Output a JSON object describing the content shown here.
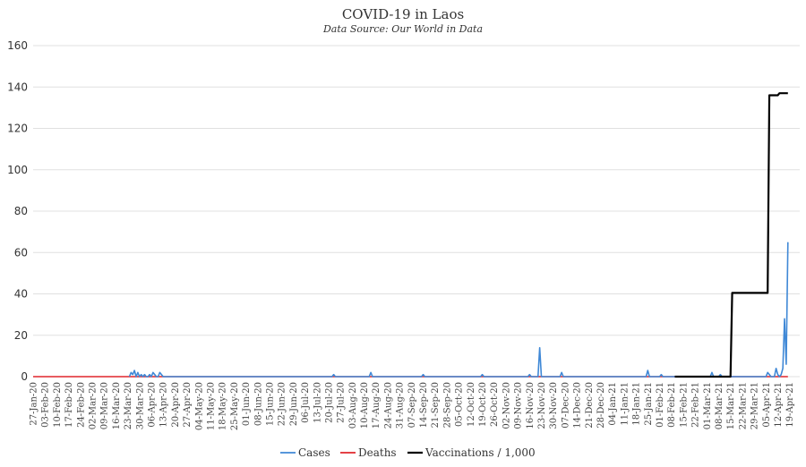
{
  "chart_data": {
    "type": "line",
    "title": "COVID-19 in Laos",
    "subtitle": "Data Source: Our World in Data",
    "xlabel": "",
    "ylabel": "",
    "ylim": [
      0,
      160
    ],
    "yticks": [
      0,
      20,
      40,
      60,
      80,
      100,
      120,
      140,
      160
    ],
    "grid": true,
    "legend_position": "bottom",
    "x_start": "2020-01-27",
    "x_end": "2021-04-25",
    "x_tick_labels": [
      "27-Jan-20",
      "03-Feb-20",
      "10-Feb-20",
      "17-Feb-20",
      "24-Feb-20",
      "02-Mar-20",
      "09-Mar-20",
      "16-Mar-20",
      "23-Mar-20",
      "30-Mar-20",
      "06-Apr-20",
      "13-Apr-20",
      "20-Apr-20",
      "27-Apr-20",
      "04-May-20",
      "11-May-20",
      "18-May-20",
      "25-May-20",
      "01-Jun-20",
      "08-Jun-20",
      "15-Jun-20",
      "22-Jun-20",
      "29-Jun-20",
      "06-Jul-20",
      "13-Jul-20",
      "20-Jul-20",
      "27-Jul-20",
      "03-Aug-20",
      "10-Aug-20",
      "17-Aug-20",
      "24-Aug-20",
      "31-Aug-20",
      "07-Sep-20",
      "14-Sep-20",
      "21-Sep-20",
      "28-Sep-20",
      "05-Oct-20",
      "12-Oct-20",
      "19-Oct-20",
      "26-Oct-20",
      "02-Nov-20",
      "09-Nov-20",
      "16-Nov-20",
      "23-Nov-20",
      "30-Nov-20",
      "07-Dec-20",
      "14-Dec-20",
      "21-Dec-20",
      "28-Dec-20",
      "04-Jan-21",
      "11-Jan-21",
      "18-Jan-21",
      "25-Jan-21",
      "01-Feb-21",
      "08-Feb-21",
      "15-Feb-21",
      "22-Feb-21",
      "01-Mar-21",
      "08-Mar-21",
      "15-Mar-21",
      "22-Mar-21",
      "29-Mar-21",
      "05-Apr-21",
      "12-Apr-21",
      "19-Apr-21"
    ],
    "series": [
      {
        "name": "Cases",
        "color": "#3f88d6",
        "points": [
          [
            "2020-03-24",
            0
          ],
          [
            "2020-03-25",
            2
          ],
          [
            "2020-03-26",
            1
          ],
          [
            "2020-03-27",
            3
          ],
          [
            "2020-03-28",
            0
          ],
          [
            "2020-03-29",
            2
          ],
          [
            "2020-03-30",
            0
          ],
          [
            "2020-03-31",
            1
          ],
          [
            "2020-04-01",
            0
          ],
          [
            "2020-04-02",
            1
          ],
          [
            "2020-04-03",
            0
          ],
          [
            "2020-04-04",
            0
          ],
          [
            "2020-04-05",
            1
          ],
          [
            "2020-04-06",
            0
          ],
          [
            "2020-04-07",
            2
          ],
          [
            "2020-04-08",
            1
          ],
          [
            "2020-04-09",
            0
          ],
          [
            "2020-04-10",
            0
          ],
          [
            "2020-04-11",
            2
          ],
          [
            "2020-04-12",
            1
          ],
          [
            "2020-04-13",
            0
          ],
          [
            "2020-07-22",
            0
          ],
          [
            "2020-07-23",
            1
          ],
          [
            "2020-07-24",
            0
          ],
          [
            "2020-08-13",
            0
          ],
          [
            "2020-08-14",
            2
          ],
          [
            "2020-08-15",
            0
          ],
          [
            "2020-09-13",
            0
          ],
          [
            "2020-09-14",
            1
          ],
          [
            "2020-09-15",
            0
          ],
          [
            "2020-10-18",
            0
          ],
          [
            "2020-10-19",
            1
          ],
          [
            "2020-10-20",
            0
          ],
          [
            "2020-11-15",
            0
          ],
          [
            "2020-11-16",
            1
          ],
          [
            "2020-11-17",
            0
          ],
          [
            "2020-11-21",
            0
          ],
          [
            "2020-11-22",
            14
          ],
          [
            "2020-11-23",
            0
          ],
          [
            "2020-12-04",
            0
          ],
          [
            "2020-12-05",
            2
          ],
          [
            "2020-12-06",
            0
          ],
          [
            "2021-01-24",
            0
          ],
          [
            "2021-01-25",
            3
          ],
          [
            "2021-01-26",
            0
          ],
          [
            "2021-02-01",
            0
          ],
          [
            "2021-02-02",
            1
          ],
          [
            "2021-02-03",
            0
          ],
          [
            "2021-03-03",
            0
          ],
          [
            "2021-03-04",
            2
          ],
          [
            "2021-03-05",
            0
          ],
          [
            "2021-03-08",
            0
          ],
          [
            "2021-03-09",
            1
          ],
          [
            "2021-03-10",
            0
          ],
          [
            "2021-04-05",
            0
          ],
          [
            "2021-04-06",
            2
          ],
          [
            "2021-04-07",
            1
          ],
          [
            "2021-04-08",
            0
          ],
          [
            "2021-04-10",
            0
          ],
          [
            "2021-04-11",
            4
          ],
          [
            "2021-04-12",
            1
          ],
          [
            "2021-04-13",
            0
          ],
          [
            "2021-04-14",
            1
          ],
          [
            "2021-04-15",
            4
          ],
          [
            "2021-04-16",
            28
          ],
          [
            "2021-04-17",
            6
          ],
          [
            "2021-04-18",
            65
          ]
        ]
      },
      {
        "name": "Deaths",
        "color": "#e0262c",
        "points": [
          [
            "2020-01-27",
            0
          ],
          [
            "2021-04-18",
            0
          ]
        ]
      },
      {
        "name": "Vaccinations / 1,000",
        "color": "#000000",
        "points": [
          [
            "2021-02-10",
            0
          ],
          [
            "2021-03-15",
            0
          ],
          [
            "2021-03-16",
            40.5
          ],
          [
            "2021-04-06",
            40.5
          ],
          [
            "2021-04-07",
            136
          ],
          [
            "2021-04-12",
            136
          ],
          [
            "2021-04-13",
            137
          ],
          [
            "2021-04-18",
            137
          ]
        ]
      }
    ]
  }
}
